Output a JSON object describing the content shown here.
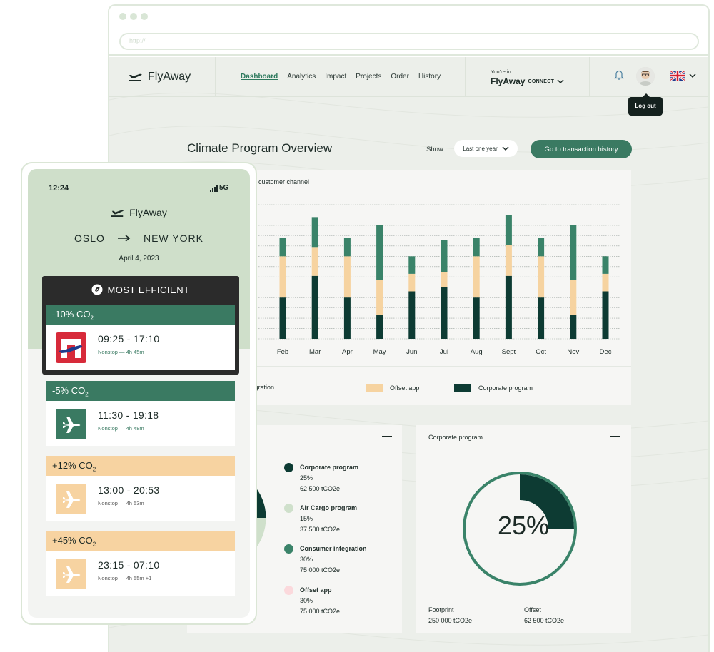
{
  "browser": {
    "url_placeholder": "http://"
  },
  "header": {
    "logo_text": "FlyAway",
    "nav": [
      "Dashboard",
      "Analytics",
      "Impact",
      "Projects",
      "Order",
      "History"
    ],
    "youre_in_label": "You're in:",
    "workspace_brand": "FlyAway",
    "workspace_suffix": "CONNECT",
    "logout_tooltip": "Log out"
  },
  "page": {
    "title": "Climate Program Overview",
    "show_label": "Show:",
    "period_select": "Last one year",
    "transaction_button": "Go to transaction history"
  },
  "chart_data": {
    "type": "bar",
    "stacked": true,
    "title": "customer channel",
    "categories": [
      "Feb",
      "Mar",
      "Apr",
      "May",
      "Jun",
      "Jul",
      "Aug",
      "Sept",
      "Oct",
      "Nov",
      "Dec"
    ],
    "series": [
      {
        "name": "Corporate program",
        "color": "#0d3b33",
        "values": [
          40,
          61,
          40,
          23,
          46,
          50,
          40,
          61,
          40,
          23,
          46
        ]
      },
      {
        "name": "Offset app",
        "color": "#f6d3a0",
        "values": [
          40,
          28,
          40,
          34,
          17,
          15,
          40,
          30,
          40,
          34,
          17
        ]
      },
      {
        "name": "Consumer integration",
        "color": "#3a8369",
        "values": [
          18,
          29,
          18,
          53,
          17,
          31,
          18,
          29,
          18,
          53,
          17
        ]
      }
    ],
    "grid": true,
    "legend": "bottom"
  },
  "legend_labels": {
    "consumer": "Consumer integration",
    "offset": "Offset app",
    "corporate": "Corporate program"
  },
  "share_card": {
    "items": [
      {
        "name": "Corporate program",
        "pct": "25%",
        "amount": "62 500 tCO2e",
        "color": "#0d3b33"
      },
      {
        "name": "Air Cargo program",
        "pct": "15%",
        "amount": "37 500 tCO2e",
        "color": "#cfe0cb"
      },
      {
        "name": "Consumer integration",
        "pct": "30%",
        "amount": "75 000 tCO2e",
        "color": "#3a8369"
      },
      {
        "name": "Offset app",
        "pct": "30%",
        "amount": "75 000 tCO2e",
        "color": "#fbd9dc"
      }
    ]
  },
  "corporate_card": {
    "title": "Corporate program",
    "percent_label": "25%",
    "progress_fraction": 0.25,
    "footprint_label": "Footprint",
    "footprint_value": "250 000 tCO2e",
    "offset_label": "Offset",
    "offset_value": "62 500 tCO2e"
  },
  "phone": {
    "time": "12:24",
    "network": "5G",
    "logo_text": "FlyAway",
    "origin": "OSLO",
    "destination": "NEW YORK",
    "date": "April 4, 2023",
    "badge": "MOST EFFICIENT",
    "flights": [
      {
        "co2": "-10%",
        "co2_label": "CO",
        "times": "09:25 - 17:10",
        "meta": "Nonstop — 4h 45m"
      },
      {
        "co2": "-5%",
        "co2_label": "CO",
        "times": "11:30 - 19:18",
        "meta": "Nonstop — 4h 48m"
      },
      {
        "co2": "+12%",
        "co2_label": "CO",
        "times": "13:00 - 20:53",
        "meta": "Nonstop — 4h 53m"
      },
      {
        "co2": "+45%",
        "co2_label": "CO",
        "times": "23:15 - 07:10",
        "meta": "Nonstop — 4h 55m +1"
      }
    ]
  }
}
